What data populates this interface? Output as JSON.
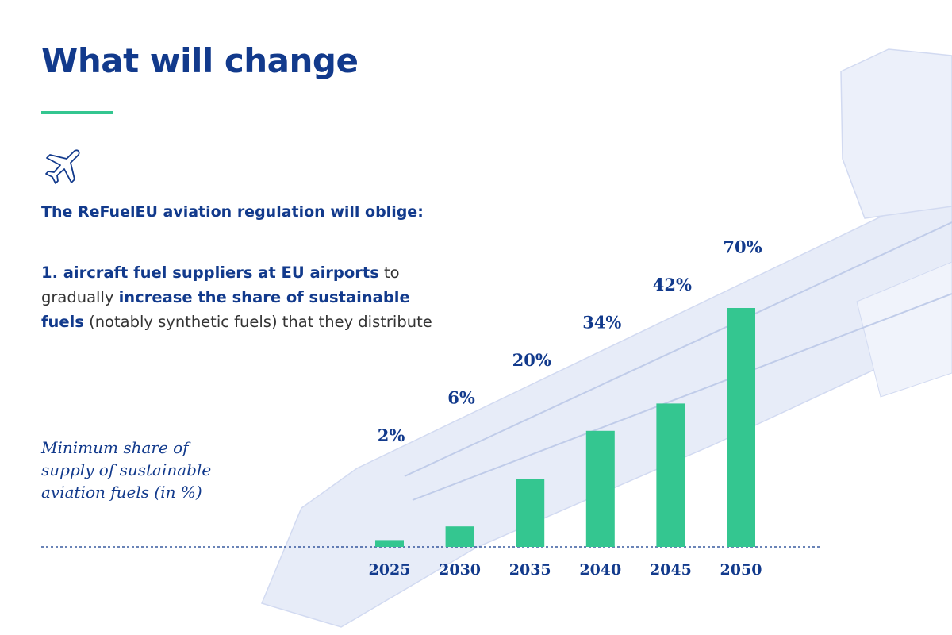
{
  "chart_data": {
    "type": "bar",
    "title": "What will change",
    "subtitle": "The ReFuelEU aviation regulation will oblige:",
    "text_segments": [
      {
        "text": "1. aircraft fuel suppliers at EU airports",
        "bold": true
      },
      {
        "text": " to gradually ",
        "bold": false
      },
      {
        "text": "increase the share of sustainable fuels",
        "bold": true
      },
      {
        "text": " (notably synthetic fuels) that they distribute",
        "bold": false
      }
    ],
    "y_label": "Minimum share of supply of sustainable aviation fuels (in %)",
    "categories": [
      "2025",
      "2030",
      "2035",
      "2040",
      "2045",
      "2050"
    ],
    "values": [
      2,
      6,
      20,
      34,
      42,
      70
    ],
    "value_labels": [
      "2%",
      "6%",
      "20%",
      "34%",
      "42%",
      "70%"
    ],
    "color": "#34c690"
  }
}
